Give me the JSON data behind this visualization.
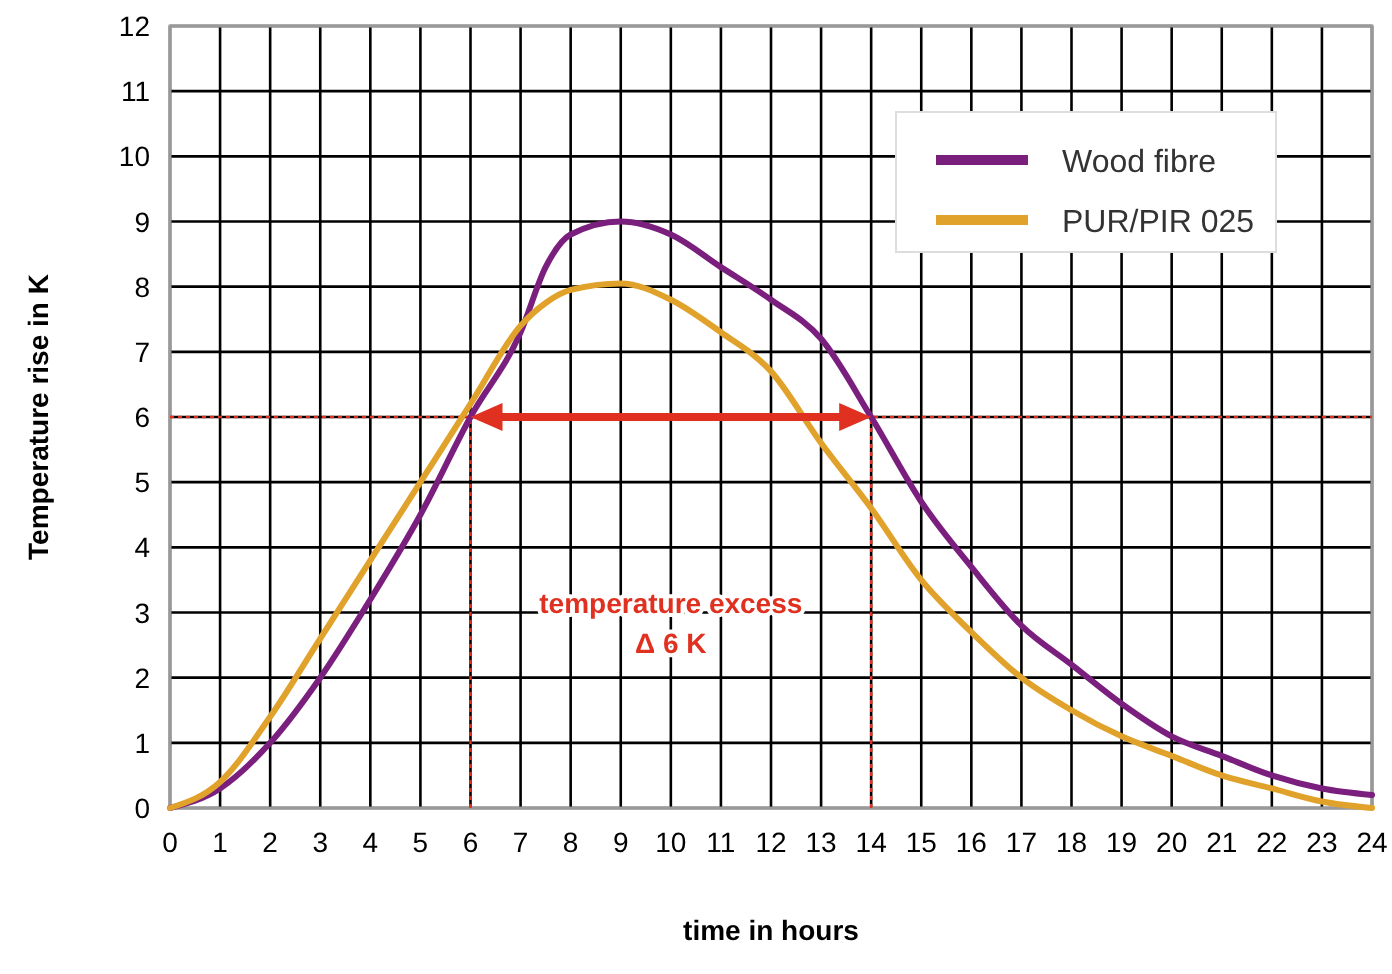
{
  "chart_data": {
    "type": "line",
    "xlabel": "time in hours",
    "ylabel": "Temperature rise in K",
    "x": [
      0,
      1,
      2,
      3,
      4,
      5,
      6,
      7,
      7.5,
      8,
      9,
      10,
      11,
      12,
      13,
      14,
      15,
      16,
      17,
      18,
      19,
      20,
      21,
      22,
      23,
      24
    ],
    "series": [
      {
        "name": "Wood fibre",
        "color": "#7b1f7f",
        "values": [
          0,
          0.3,
          1.0,
          2.0,
          3.2,
          4.5,
          6.0,
          7.3,
          8.3,
          8.8,
          9.0,
          8.8,
          8.3,
          7.8,
          7.2,
          6.0,
          4.7,
          3.7,
          2.8,
          2.2,
          1.6,
          1.1,
          0.8,
          0.5,
          0.3,
          0.2
        ]
      },
      {
        "name": "PUR/PIR 025",
        "color": "#e0a22a",
        "values": [
          0,
          0.4,
          1.4,
          2.6,
          3.8,
          5.0,
          6.2,
          7.4,
          7.75,
          7.95,
          8.05,
          7.8,
          7.3,
          6.7,
          5.6,
          4.6,
          3.5,
          2.7,
          2.0,
          1.5,
          1.1,
          0.8,
          0.5,
          0.3,
          0.1,
          0.0
        ]
      }
    ],
    "xlim": [
      0,
      24
    ],
    "xticks": [
      0,
      1,
      2,
      3,
      4,
      5,
      6,
      7,
      8,
      9,
      10,
      11,
      12,
      13,
      14,
      15,
      16,
      17,
      18,
      19,
      20,
      21,
      22,
      23,
      24
    ],
    "ylim": [
      0,
      12
    ],
    "yticks": [
      0,
      1,
      2,
      3,
      4,
      5,
      6,
      7,
      8,
      9,
      10,
      11,
      12
    ],
    "grid": true,
    "legend": "top right",
    "marker": "none",
    "line_style": "solid",
    "ref_lines": [
      {
        "axis": "y",
        "value": 6,
        "color": "#e03020",
        "line_style": "dotted"
      },
      {
        "axis": "x",
        "value": 6,
        "color": "#e03020",
        "line_style": "dotted"
      },
      {
        "axis": "x",
        "value": 14,
        "color": "#e03020",
        "line_style": "dotted"
      }
    ],
    "annotations": [
      "temperature excess",
      "Δ 6 K"
    ]
  }
}
